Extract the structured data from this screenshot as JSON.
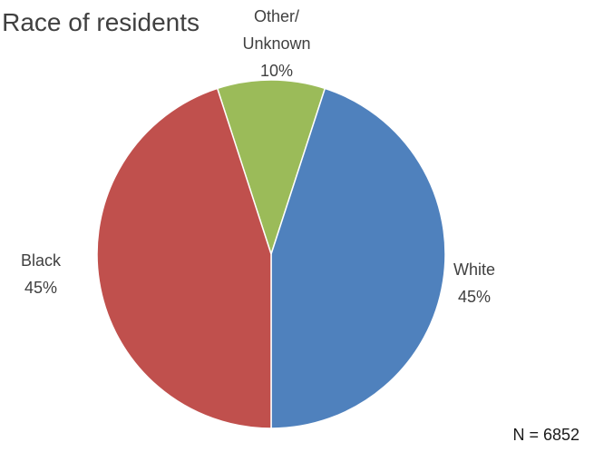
{
  "chart_data": {
    "type": "pie",
    "title": "Race of residents",
    "slices": [
      {
        "label": "Other/ Unknown",
        "label_lines": [
          "Other/",
          "Unknown"
        ],
        "value": 10,
        "value_label": "10%",
        "color": "#9BBB59"
      },
      {
        "label": "White",
        "label_lines": [
          "White"
        ],
        "value": 45,
        "value_label": "45%",
        "color": "#4F81BD"
      },
      {
        "label": "Black",
        "label_lines": [
          "Black"
        ],
        "value": 45,
        "value_label": "45%",
        "color": "#C0504D"
      }
    ],
    "start_angle_deg": -18,
    "direction": "clockwise",
    "note": "N = 6852"
  }
}
